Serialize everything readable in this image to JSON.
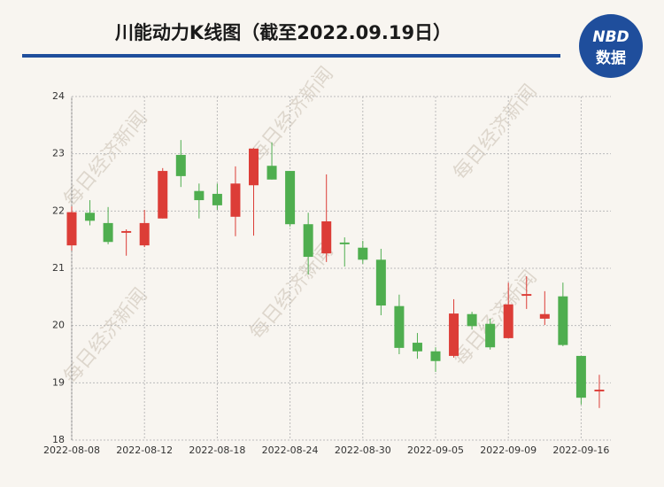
{
  "chart_data": {
    "type": "candlestick",
    "title": "川能动力K线图（截至2022.09.19日）",
    "logo": {
      "top": "NBD",
      "bottom": "数据"
    },
    "watermark": "每日经济新闻",
    "categories": [
      "2022-08-08",
      null,
      null,
      null,
      "2022-08-12",
      null,
      null,
      null,
      "2022-08-18",
      null,
      null,
      null,
      "2022-08-24",
      null,
      null,
      null,
      "2022-08-30",
      null,
      null,
      null,
      "2022-09-05",
      null,
      null,
      null,
      "2022-09-09",
      null,
      null,
      null,
      "2022-09-16",
      null
    ],
    "open": [
      21.4,
      21.97,
      21.79,
      21.62,
      21.4,
      21.87,
      22.98,
      22.35,
      22.3,
      21.9,
      22.45,
      22.79,
      22.7,
      21.77,
      21.26,
      21.45,
      21.36,
      21.15,
      20.34,
      19.7,
      19.55,
      19.47,
      20.2,
      20.03,
      19.78,
      20.52,
      20.12,
      20.51,
      19.47,
      18.85
    ],
    "high": [
      22.08,
      22.19,
      22.07,
      21.68,
      22.02,
      22.75,
      23.24,
      22.48,
      22.48,
      22.78,
      23.1,
      23.2,
      22.7,
      21.97,
      22.64,
      21.54,
      21.48,
      21.34,
      20.54,
      19.87,
      19.62,
      20.46,
      20.24,
      20.12,
      20.75,
      20.86,
      20.6,
      20.75,
      19.47,
      19.14
    ],
    "low": [
      21.31,
      21.75,
      21.42,
      21.22,
      21.37,
      21.87,
      22.42,
      21.87,
      22.02,
      21.56,
      21.57,
      22.55,
      21.73,
      20.89,
      21.11,
      21.03,
      21.08,
      20.18,
      19.5,
      19.42,
      19.19,
      19.44,
      19.93,
      19.58,
      19.78,
      20.29,
      20.01,
      19.64,
      18.62,
      18.56
    ],
    "close": [
      21.98,
      21.83,
      21.46,
      21.65,
      21.79,
      22.7,
      22.61,
      22.19,
      22.1,
      22.48,
      23.09,
      22.55,
      21.77,
      21.2,
      21.82,
      21.42,
      21.15,
      20.35,
      19.61,
      19.55,
      19.38,
      20.21,
      19.99,
      19.62,
      20.37,
      20.55,
      20.2,
      19.66,
      18.74,
      18.88
    ],
    "up_color": "#dc3d37",
    "down_color": "#4fae4f",
    "ylim": [
      18,
      24
    ],
    "yticks": [
      18,
      19,
      20,
      21,
      22,
      23,
      24
    ],
    "grid": true
  }
}
